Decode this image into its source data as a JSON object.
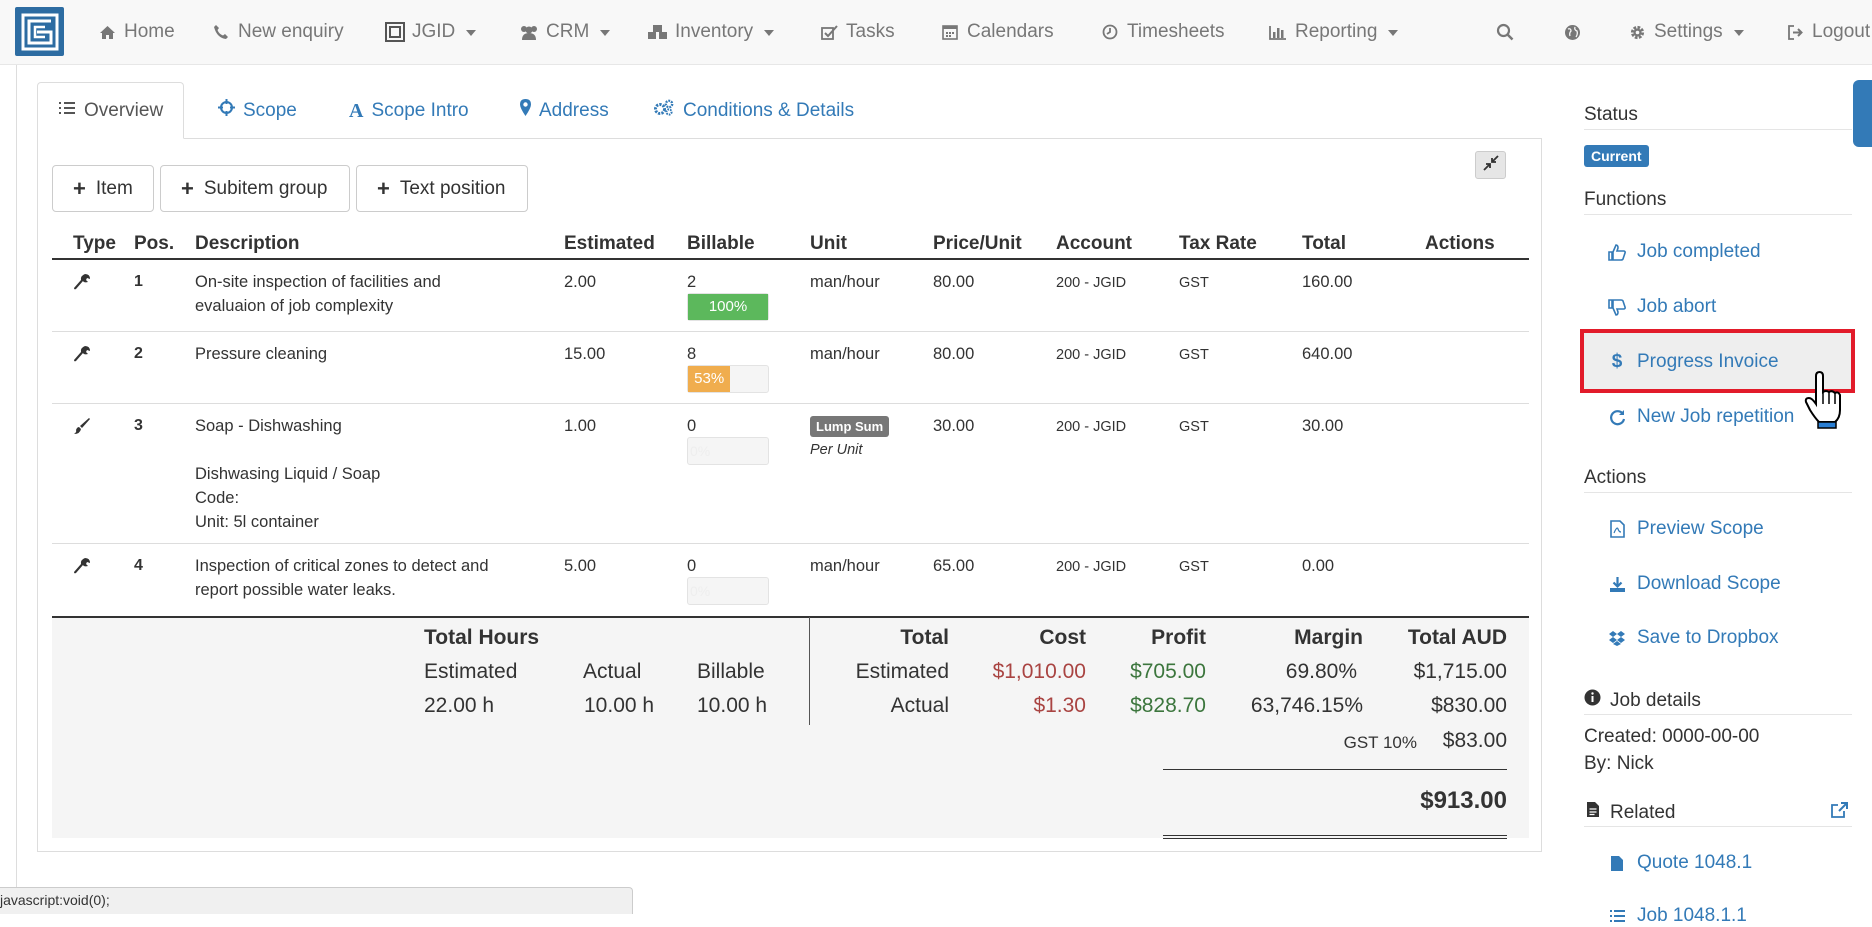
{
  "nav": {
    "items": [
      {
        "label": "Home",
        "icon": "home-icon"
      },
      {
        "label": "New enquiry",
        "icon": "phone-icon"
      },
      {
        "label": "JGID",
        "icon": "building-icon"
      },
      {
        "label": "CRM",
        "icon": "users-icon"
      },
      {
        "label": "Inventory",
        "icon": "cubes-icon"
      },
      {
        "label": "Tasks",
        "icon": "check-icon"
      },
      {
        "label": "Calendars",
        "icon": "calendar-icon"
      },
      {
        "label": "Timesheets",
        "icon": "clock-icon"
      },
      {
        "label": "Reporting",
        "icon": "bar-chart-icon"
      },
      {
        "label": "Settings",
        "icon": "gear-icon"
      },
      {
        "label": "Logout",
        "icon": "sign-out-icon"
      }
    ]
  },
  "tabs": [
    "Overview",
    "Scope",
    "Scope Intro",
    "Address",
    "Conditions & Details"
  ],
  "toolbar": {
    "item": "Item",
    "subitem_group": "Subitem group",
    "text_position": "Text position"
  },
  "table": {
    "headers": [
      "Type",
      "Pos.",
      "Description",
      "Estimated",
      "Billable",
      "Unit",
      "Price/Unit",
      "Account",
      "Tax Rate",
      "Total",
      "Actions"
    ],
    "rows": [
      {
        "type_icon": "wrench-icon",
        "pos": "1",
        "desc1": "On-site inspection of facilities and",
        "desc2": "evaluaion of job complexity",
        "estimated": "2.00",
        "billable": "2",
        "progress_label": "100%",
        "progress": 1.0,
        "unit": "man/hour",
        "price": "80.00",
        "account": "200 - JGID",
        "tax": "GST",
        "total": "160.00"
      },
      {
        "type_icon": "wrench-icon",
        "pos": "2",
        "desc1": "Pressure cleaning",
        "estimated": "15.00",
        "billable": "8",
        "progress_label": "53%",
        "progress": 0.53,
        "unit": "man/hour",
        "price": "80.00",
        "account": "200 - JGID",
        "tax": "GST",
        "total": "640.00"
      },
      {
        "type_icon": "brush-icon",
        "pos": "3",
        "desc1": "Soap - Dishwashing",
        "desc2": "Dishwasing Liquid / Soap",
        "desc3": "Code:",
        "desc4": "Unit: 5l container",
        "estimated": "1.00",
        "billable": "0",
        "progress_label": "0%",
        "progress": 0,
        "unit_badge": "Lump Sum",
        "unit_sub": "Per Unit",
        "price": "30.00",
        "account": "200 - JGID",
        "tax": "GST",
        "total": "30.00"
      },
      {
        "type_icon": "wrench-icon",
        "pos": "4",
        "desc1": "Inspection of critical zones to detect and",
        "desc2": "report possible water leaks.",
        "estimated": "5.00",
        "billable": "0",
        "progress_label": "0%",
        "progress": 0,
        "unit": "man/hour",
        "price": "65.00",
        "account": "200 - JGID",
        "tax": "GST",
        "total": "0.00"
      }
    ]
  },
  "totals": {
    "hours_title": "Total Hours",
    "hours_headers": [
      "Estimated",
      "Actual",
      "Billable"
    ],
    "hours_values": [
      "22.00 h",
      "10.00 h",
      "10.00 h"
    ],
    "headers": [
      "Total",
      "Cost",
      "Profit",
      "Margin",
      "Total AUD"
    ],
    "estimated": {
      "label": "Estimated",
      "cost": "$1,010.00",
      "profit": "$705.00",
      "margin": "69.80%",
      "total": "$1,715.00"
    },
    "actual": {
      "label": "Actual",
      "cost": "$1.30",
      "profit": "$828.70",
      "margin": "63,746.15%",
      "total": "$830.00"
    },
    "gst_label": "GST 10%",
    "gst_value": "$83.00",
    "grand_total": "$913.00"
  },
  "sidebar": {
    "status_title": "Status",
    "status_badge": "Current",
    "functions_title": "Functions",
    "functions": [
      {
        "label": "Job completed",
        "icon": "thumbs-up-icon"
      },
      {
        "label": "Job abort",
        "icon": "thumbs-down-icon"
      },
      {
        "label": "Progress Invoice",
        "icon": "dollar-icon"
      },
      {
        "label": "New Job repetition",
        "icon": "refresh-icon"
      }
    ],
    "actions_title": "Actions",
    "actions": [
      {
        "label": "Preview Scope",
        "icon": "pdf-icon"
      },
      {
        "label": "Download Scope",
        "icon": "download-icon"
      },
      {
        "label": "Save to Dropbox",
        "icon": "dropbox-icon"
      }
    ],
    "job_details_title": "Job details",
    "created": "Created: 0000-00-00",
    "by": "By: Nick",
    "related_title": "Related",
    "related": [
      {
        "label": "Quote 1048.1",
        "icon": "file-icon"
      },
      {
        "label": "Job 1048.1.1",
        "icon": "list-icon"
      }
    ]
  },
  "status_bar": "javascript:void(0);",
  "colors": {
    "link": "#337ab7",
    "highlight": "#e21b2a",
    "success": "#5cb85c",
    "warning": "#f0ad4e"
  }
}
